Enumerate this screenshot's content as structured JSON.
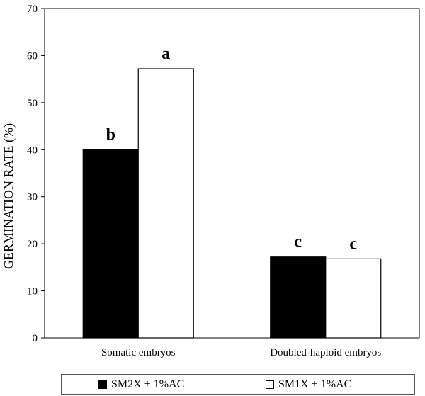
{
  "chart_data": {
    "type": "bar",
    "ylabel": "GERMINATION RATE (%)",
    "xlabel": "",
    "ylim": [
      0,
      70
    ],
    "yticks": [
      0,
      10,
      20,
      30,
      40,
      50,
      60,
      70
    ],
    "categories": [
      "Somatic embryos",
      "Doubled-haploid embryos"
    ],
    "series": [
      {
        "name": "SM2X + 1%AC",
        "color": "#000000",
        "values": [
          40,
          17.2
        ],
        "labels": [
          "b",
          "c"
        ]
      },
      {
        "name": "SM1X + 1%AC",
        "color": "#ffffff",
        "values": [
          57.2,
          16.8
        ],
        "labels": [
          "a",
          "c"
        ]
      }
    ],
    "legend": "bottom"
  }
}
